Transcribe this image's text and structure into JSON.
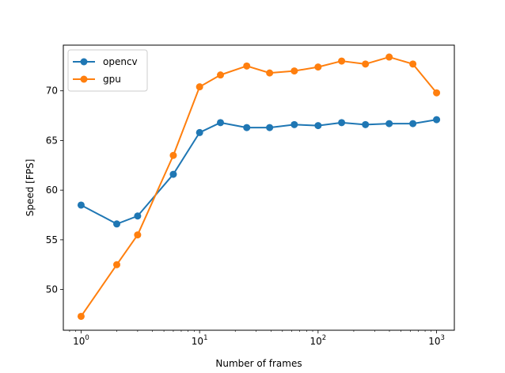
{
  "chart_data": {
    "type": "line",
    "title": "",
    "xlabel": "Number of frames",
    "ylabel": "Speed [FPS]",
    "xscale": "log",
    "xlim": [
      0.708,
      1412
    ],
    "ylim": [
      45.9,
      74.6
    ],
    "grid": false,
    "legend_position": "top-left",
    "x_ticks": [
      {
        "value": 1,
        "base": "10",
        "exp": "0"
      },
      {
        "value": 10,
        "base": "10",
        "exp": "1"
      },
      {
        "value": 100,
        "base": "10",
        "exp": "2"
      },
      {
        "value": 1000,
        "base": "10",
        "exp": "3"
      }
    ],
    "y_ticks": [
      50,
      55,
      60,
      65,
      70
    ],
    "x": [
      1,
      2,
      3,
      6,
      10,
      15,
      25,
      39,
      63,
      100,
      158,
      251,
      398,
      631,
      1000
    ],
    "series": [
      {
        "name": "opencv",
        "color": "#1f77b4",
        "values": [
          58.5,
          56.6,
          57.4,
          61.6,
          65.8,
          66.8,
          66.3,
          66.3,
          66.6,
          66.5,
          66.8,
          66.6,
          66.7,
          66.7,
          67.1
        ]
      },
      {
        "name": "gpu",
        "color": "#ff7f0e",
        "values": [
          47.3,
          52.5,
          55.5,
          63.5,
          70.4,
          71.6,
          72.5,
          71.8,
          72.0,
          72.4,
          73.0,
          72.7,
          73.4,
          72.7,
          69.8
        ]
      }
    ]
  }
}
